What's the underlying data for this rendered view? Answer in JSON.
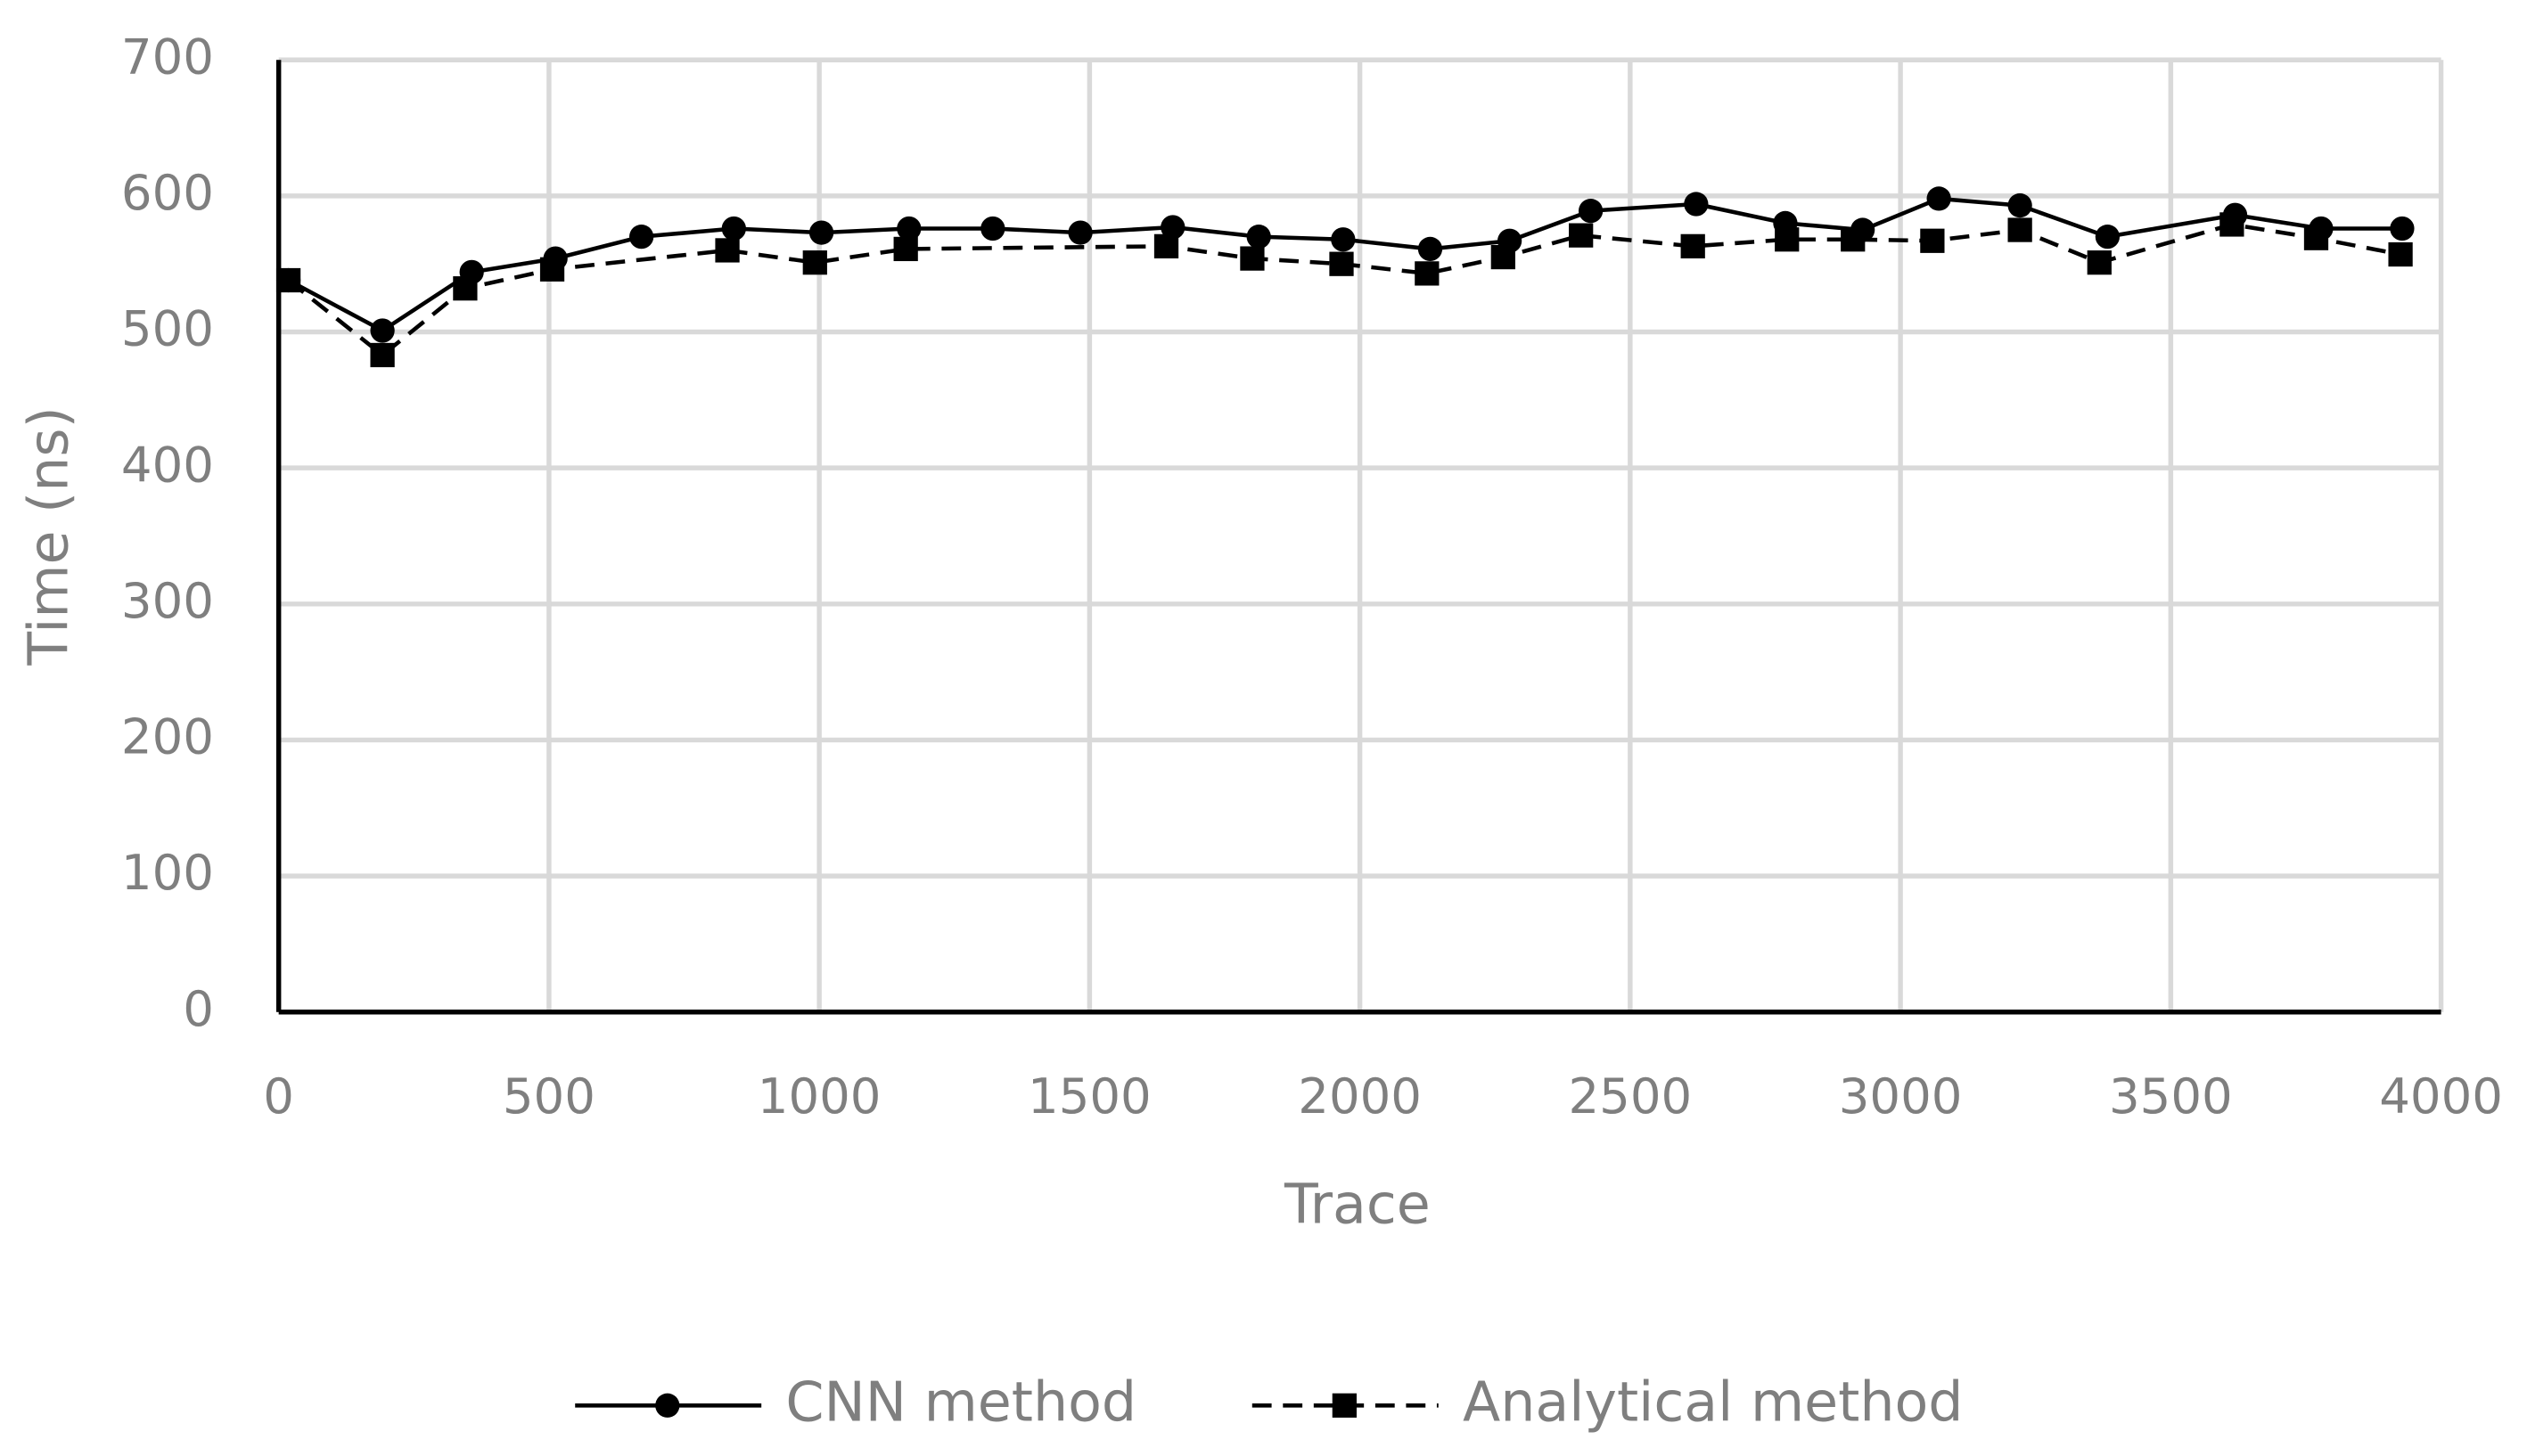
{
  "chart_data": {
    "type": "line",
    "x_label": "Trace",
    "y_label": "Time (ns)",
    "xlim": [
      0,
      4000
    ],
    "xticks": [
      0,
      500,
      1000,
      1500,
      2000,
      2500,
      3000,
      3500,
      4000
    ],
    "ylim": [
      0,
      700
    ],
    "yticks": [
      0,
      100,
      200,
      300,
      400,
      500,
      600,
      700
    ],
    "grid": true,
    "legend": "bottom",
    "series": [
      {
        "name": "CNN method",
        "color": "#000000",
        "dash": "solid",
        "marker": "circle",
        "x": [
          18,
          192,
          357,
          512,
          671,
          842,
          1004,
          1166,
          1321,
          1483,
          1654,
          1813,
          1969,
          2130,
          2277,
          2427,
          2622,
          2787,
          2930,
          3071,
          3221,
          3383,
          3619,
          3778,
          3928
        ],
        "values": [
          538,
          501,
          544,
          554,
          570,
          576,
          573,
          576,
          576,
          573,
          577,
          570,
          568,
          561,
          567,
          589,
          594,
          580,
          575,
          598,
          593,
          570,
          586,
          576,
          576
        ]
      },
      {
        "name": "Analytical method",
        "color": "#000000",
        "dash": "dashed",
        "marker": "square",
        "x": [
          18,
          192,
          345,
          506,
          830,
          992,
          1160,
          1642,
          1801,
          1966,
          2124,
          2265,
          2409,
          2616,
          2790,
          2912,
          3059,
          3221,
          3368,
          3613,
          3769,
          3925
        ],
        "values": [
          538,
          483,
          532,
          546,
          560,
          551,
          561,
          563,
          554,
          550,
          543,
          555,
          571,
          563,
          568,
          568,
          567,
          575,
          551,
          579,
          569,
          557
        ]
      }
    ]
  }
}
